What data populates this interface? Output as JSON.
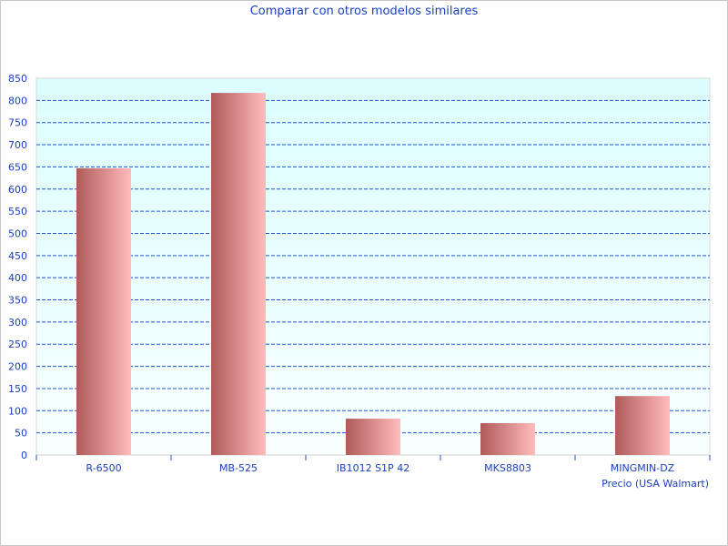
{
  "chart_data": {
    "type": "bar",
    "title": "Comparar con otros modelos similares",
    "xlabel": "Precio (USA Walmart)",
    "ylabel": "",
    "categories": [
      "R-6500",
      "MB-525",
      "IB1012 S1P 42",
      "MKS8803",
      "MINGMIN-DZ"
    ],
    "values": [
      647,
      817,
      82,
      72,
      133
    ],
    "ylim": [
      0,
      850
    ],
    "yticks": [
      0,
      50,
      100,
      150,
      200,
      250,
      300,
      350,
      400,
      450,
      500,
      550,
      600,
      650,
      700,
      750,
      800,
      850
    ],
    "grid": true,
    "legend": "none",
    "colors": {
      "bar_dark": "#b05a5a",
      "bar_light": "#ffbcbc",
      "grid": "#2050d0",
      "text": "#1a40c0",
      "plot_bg_top": "#dcfefe",
      "plot_bg_bottom": "#f8ffff"
    }
  }
}
